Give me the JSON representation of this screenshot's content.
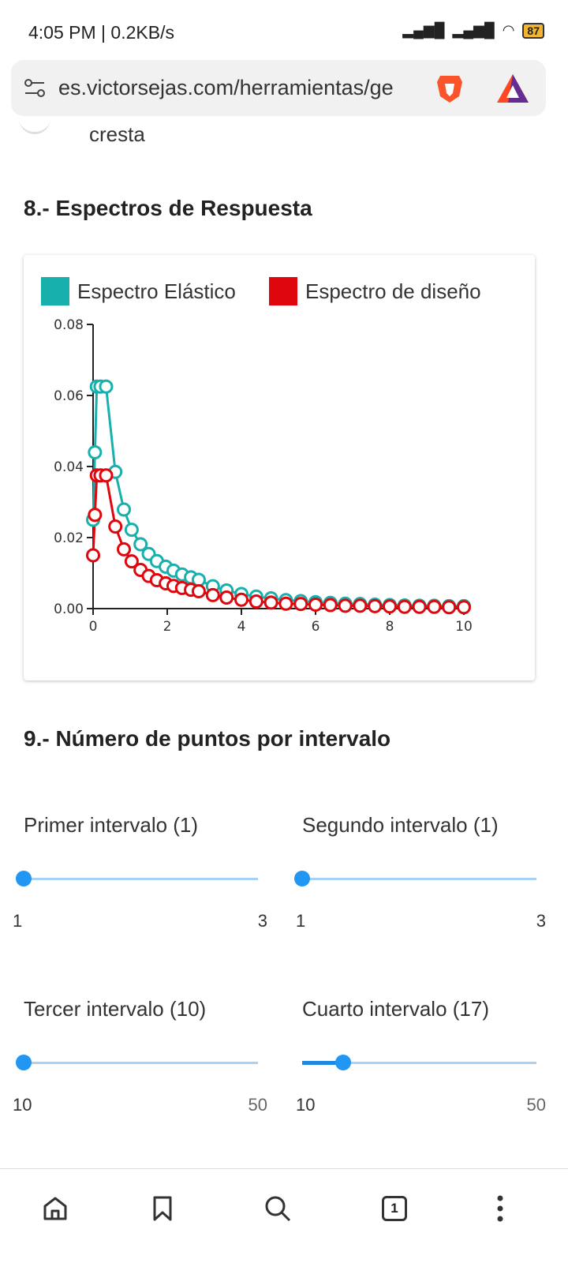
{
  "status_bar": {
    "time": "4:05 PM | 0.2KB/s",
    "battery": "87"
  },
  "browser": {
    "url": "es.victorsejas.com/herramientas/ge"
  },
  "prev_item": {
    "label": "cresta"
  },
  "section8": {
    "title": "8.- Espectros de Respuesta"
  },
  "chart_data": {
    "type": "line",
    "legend": [
      "Espectro Elástico",
      "Espectro de diseño"
    ],
    "colors": {
      "elastic": "#17b0ad",
      "design": "#e0060e"
    },
    "xlim": [
      0,
      10
    ],
    "ylim": [
      0,
      0.08
    ],
    "x_ticks": [
      "0",
      "2",
      "4",
      "6",
      "8",
      "10"
    ],
    "y_ticks": [
      "0.00",
      "0.02",
      "0.04",
      "0.06",
      "0.08"
    ],
    "x": [
      0,
      0.05,
      0.1,
      0.2,
      0.35,
      0.6,
      0.83,
      1.04,
      1.28,
      1.5,
      1.72,
      1.96,
      2.17,
      2.4,
      2.64,
      2.85,
      3.23,
      3.6,
      4.0,
      4.4,
      4.8,
      5.2,
      5.6,
      6.0,
      6.4,
      6.8,
      7.2,
      7.6,
      8.0,
      8.4,
      8.8,
      9.2,
      9.6,
      10
    ],
    "series": [
      {
        "name": "Espectro Elástico",
        "values": [
          0.025,
          0.044,
          0.0625,
          0.0625,
          0.0625,
          0.0385,
          0.0279,
          0.0222,
          0.0181,
          0.0154,
          0.0134,
          0.0118,
          0.0107,
          0.0096,
          0.0088,
          0.0081,
          0.0063,
          0.0051,
          0.0041,
          0.0034,
          0.0029,
          0.0024,
          0.0021,
          0.0018,
          0.0016,
          0.0014,
          0.0013,
          0.0011,
          0.001,
          0.0009,
          0.0008,
          0.0008,
          0.0007,
          0.0007
        ]
      },
      {
        "name": "Espectro de diseño",
        "values": [
          0.015,
          0.0264,
          0.0375,
          0.0375,
          0.0375,
          0.0231,
          0.0167,
          0.0133,
          0.0109,
          0.0092,
          0.008,
          0.0071,
          0.0064,
          0.0058,
          0.0053,
          0.0049,
          0.0038,
          0.0031,
          0.0025,
          0.002,
          0.0017,
          0.0014,
          0.0013,
          0.0011,
          0.001,
          0.0008,
          0.0008,
          0.0007,
          0.0006,
          0.0005,
          0.0005,
          0.0005,
          0.0004,
          0.0004
        ]
      }
    ]
  },
  "section9": {
    "title": "9.- Número de puntos por intervalo",
    "sliders": [
      {
        "label": "Primer intervalo (1)",
        "min": "1",
        "max": "3",
        "value": 1
      },
      {
        "label": "Segundo intervalo (1)",
        "min": "1",
        "max": "3",
        "value": 1
      },
      {
        "label": "Tercer intervalo (10)",
        "min": "10",
        "max": "50",
        "value": 10
      },
      {
        "label": "Cuarto intervalo (17)",
        "min": "10",
        "max": "50",
        "value": 17
      }
    ]
  },
  "nav": {
    "tab_count": "1",
    "icons": [
      "home-icon",
      "bookmark-icon",
      "search-icon",
      "tabs-icon",
      "more-icon"
    ]
  }
}
